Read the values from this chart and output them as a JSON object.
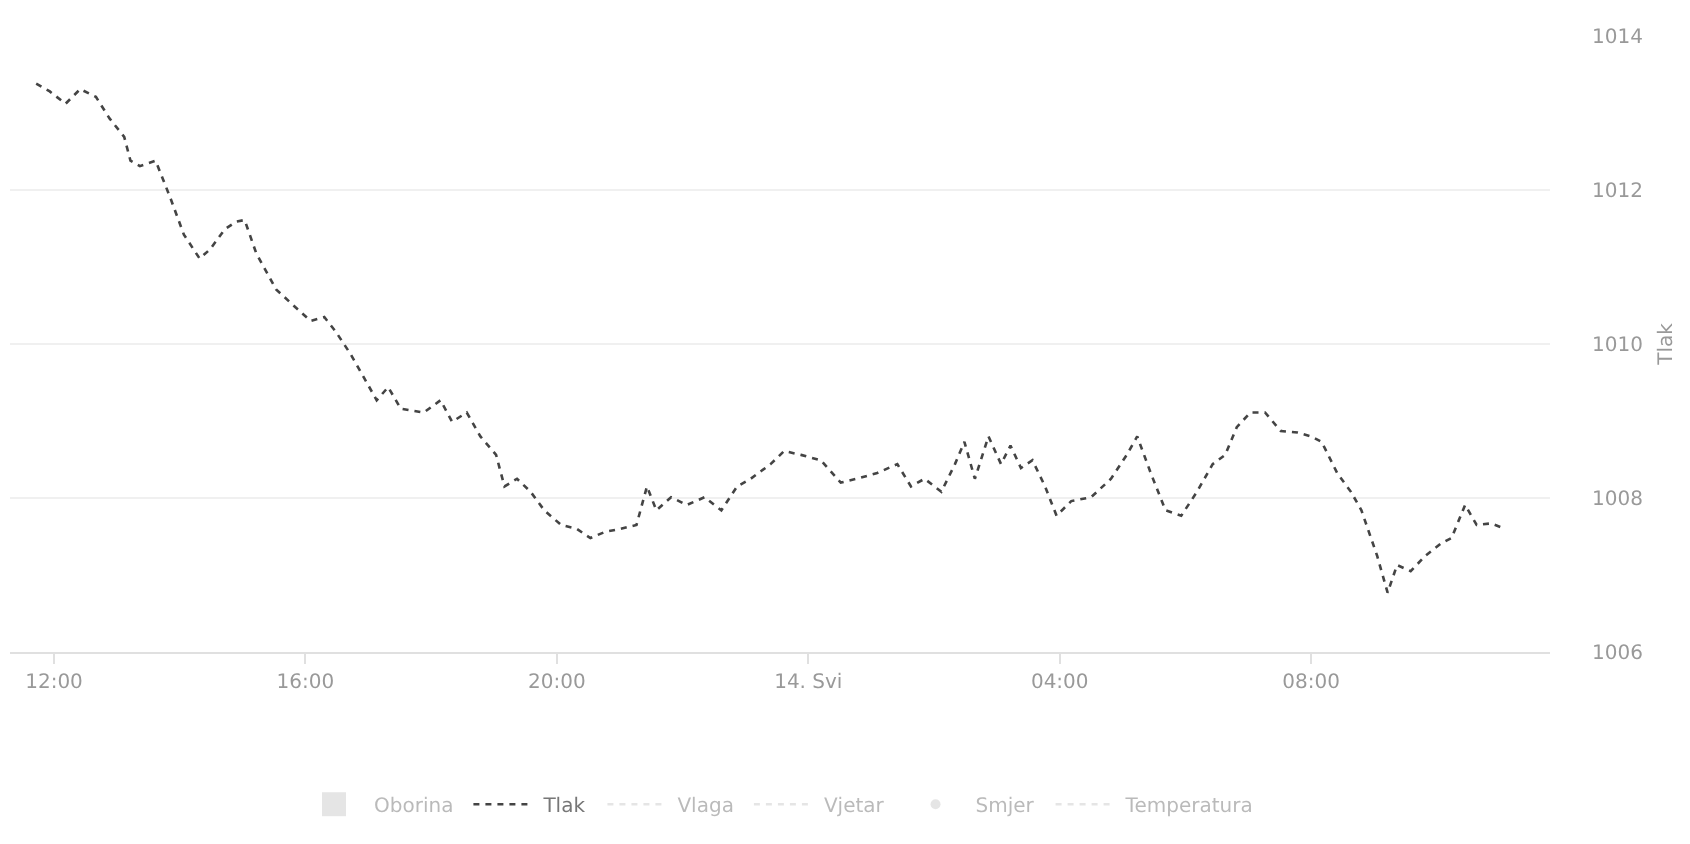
{
  "chart_data": {
    "type": "line",
    "ylabel": "Tlak",
    "xlim": [
      "--05-13T11:18",
      "--05-14T11:48"
    ],
    "xticks": [
      {
        "value": "--05-13T12:00",
        "label": "12:00"
      },
      {
        "value": "--05-13T16:00",
        "label": "16:00"
      },
      {
        "value": "--05-13T20:00",
        "label": "20:00"
      },
      {
        "value": "--05-14T00:00",
        "label": "14. Svi"
      },
      {
        "value": "--05-14T04:00",
        "label": "04:00"
      },
      {
        "value": "--05-14T08:00",
        "label": "08:00"
      }
    ],
    "ylim": [
      1006,
      1014
    ],
    "yticks": [
      1006,
      1008,
      1010,
      1012,
      1014
    ],
    "grid": "y",
    "legend": "bottom",
    "line_style": "dotted",
    "x": [
      "--05-13T11:43",
      "--05-13T11:56",
      "--05-13T12:11",
      "--05-13T12:25",
      "--05-13T12:40",
      "--05-13T12:53",
      "--05-13T13:07",
      "--05-13T13:13",
      "--05-13T13:22",
      "--05-13T13:37",
      "--05-13T13:51",
      "--05-13T14:04",
      "--05-13T14:19",
      "--05-13T14:29",
      "--05-13T14:43",
      "--05-13T14:54",
      "--05-13T15:02",
      "--05-13T15:13",
      "--05-13T15:32",
      "--05-13T15:51",
      "--05-13T16:05",
      "--05-13T16:18",
      "--05-13T16:29",
      "--05-13T16:43",
      "--05-13T16:56",
      "--05-13T17:08",
      "--05-13T17:19",
      "--05-13T17:31",
      "--05-13T17:53",
      "--05-13T18:09",
      "--05-13T18:20",
      "--05-13T18:34",
      "--05-13T18:47",
      "--05-13T19:02",
      "--05-13T19:10",
      "--05-13T19:22",
      "--05-13T19:35",
      "--05-13T19:48",
      "--05-13T20:04",
      "--05-13T20:19",
      "--05-13T20:32",
      "--05-13T20:46",
      "--05-13T21:01",
      "--05-13T21:16",
      "--05-13T21:26",
      "--05-13T21:35",
      "--05-13T21:49",
      "--05-13T22:04",
      "--05-13T22:21",
      "--05-13T22:37",
      "--05-13T22:52",
      "--05-13T23:05",
      "--05-13T23:24",
      "--05-13T23:37",
      "--05-13T23:53",
      "--05-14T00:12",
      "--05-14T00:31",
      "--05-14T00:46",
      "--05-14T01:05",
      "--05-14T01:25",
      "--05-14T01:38",
      "--05-14T01:51",
      "--05-14T02:07",
      "--05-14T02:20",
      "--05-14T02:29",
      "--05-14T02:39",
      "--05-14T02:52",
      "--05-14T03:04",
      "--05-14T03:13",
      "--05-14T03:23",
      "--05-14T03:34",
      "--05-14T03:46",
      "--05-14T03:57",
      "--05-14T04:11",
      "--05-14T04:30",
      "--05-14T04:49",
      "--05-14T05:04",
      "--05-14T05:14",
      "--05-14T05:27",
      "--05-14T05:41",
      "--05-14T05:56",
      "--05-14T06:11",
      "--05-14T06:26",
      "--05-14T06:38",
      "--05-14T06:49",
      "--05-14T07:02",
      "--05-14T07:16",
      "--05-14T07:31",
      "--05-14T07:47",
      "--05-14T08:00",
      "--05-14T08:10",
      "--05-14T08:25",
      "--05-14T08:38",
      "--05-14T08:48",
      "--05-14T09:03",
      "--05-14T09:13",
      "--05-14T09:22",
      "--05-14T09:35",
      "--05-14T09:49",
      "--05-14T10:04",
      "--05-14T10:14",
      "--05-14T10:27",
      "--05-14T10:38",
      "--05-14T10:52",
      "--05-14T11:05"
    ],
    "series": [
      {
        "name": "Oborina",
        "type": "bar",
        "color": "#cccccc",
        "values": [
          null,
          null,
          null,
          null,
          null,
          null,
          null,
          null,
          null,
          null,
          null,
          null,
          null,
          null,
          null,
          null,
          null,
          null,
          null,
          null,
          null,
          null,
          null,
          null,
          null,
          null,
          null,
          null,
          null,
          null,
          null,
          null,
          null,
          null,
          null,
          null,
          null,
          null,
          null,
          null,
          null,
          null,
          null,
          null,
          null,
          null,
          null,
          null,
          null,
          null,
          null,
          null,
          null,
          null,
          null,
          null,
          null,
          null,
          null,
          null,
          null,
          null,
          null,
          null,
          null,
          null,
          null,
          null,
          null,
          null,
          null,
          null,
          null,
          null,
          null,
          null,
          null,
          null,
          null,
          null,
          null,
          null,
          null,
          null,
          null,
          null,
          null,
          null,
          null,
          null,
          null,
          null,
          null,
          null,
          null,
          null,
          null,
          null,
          null,
          null,
          null,
          null,
          null,
          null,
          null
        ]
      },
      {
        "name": "Tlak",
        "color": "#444444",
        "values": [
          1013.38,
          1013.28,
          1013.12,
          1013.31,
          1013.21,
          1012.93,
          1012.69,
          1012.38,
          1012.31,
          1012.38,
          1011.9,
          1011.42,
          1011.11,
          1011.23,
          1011.49,
          1011.59,
          1011.61,
          1011.18,
          1010.71,
          1010.47,
          1010.3,
          1010.35,
          1010.16,
          1009.87,
          1009.56,
          1009.27,
          1009.44,
          1009.16,
          1009.11,
          1009.27,
          1008.99,
          1009.11,
          1008.8,
          1008.56,
          1008.15,
          1008.25,
          1008.08,
          1007.84,
          1007.65,
          1007.6,
          1007.48,
          1007.56,
          1007.6,
          1007.65,
          1008.15,
          1007.84,
          1008.01,
          1007.91,
          1008.01,
          1007.84,
          1008.15,
          1008.25,
          1008.44,
          1008.61,
          1008.56,
          1008.49,
          1008.2,
          1008.25,
          1008.32,
          1008.44,
          1008.15,
          1008.25,
          1008.08,
          1008.44,
          1008.73,
          1008.25,
          1008.8,
          1008.44,
          1008.68,
          1008.39,
          1008.49,
          1008.15,
          1007.77,
          1007.96,
          1008.01,
          1008.25,
          1008.56,
          1008.8,
          1008.32,
          1007.84,
          1007.77,
          1008.08,
          1008.44,
          1008.56,
          1008.92,
          1009.11,
          1009.11,
          1008.87,
          1008.85,
          1008.8,
          1008.73,
          1008.32,
          1008.08,
          1007.84,
          1007.25,
          1006.77,
          1007.13,
          1007.05,
          1007.25,
          1007.41,
          1007.48,
          1007.91,
          1007.65,
          1007.67,
          1007.6
        ]
      },
      {
        "name": "Vlaga",
        "type": "line",
        "color": "#cccccc",
        "values": [
          null,
          null,
          null,
          null,
          null,
          null,
          null,
          null,
          null,
          null,
          null,
          null,
          null,
          null,
          null,
          null,
          null,
          null,
          null,
          null,
          null,
          null,
          null,
          null,
          null,
          null,
          null,
          null,
          null,
          null,
          null,
          null,
          null,
          null,
          null,
          null,
          null,
          null,
          null,
          null,
          null,
          null,
          null,
          null,
          null,
          null,
          null,
          null,
          null,
          null,
          null,
          null,
          null,
          null,
          null,
          null,
          null,
          null,
          null,
          null,
          null,
          null,
          null,
          null,
          null,
          null,
          null,
          null,
          null,
          null,
          null,
          null,
          null,
          null,
          null,
          null,
          null,
          null,
          null,
          null,
          null,
          null,
          null,
          null,
          null,
          null,
          null,
          null,
          null,
          null,
          null,
          null,
          null,
          null,
          null,
          null,
          null,
          null,
          null,
          null,
          null,
          null,
          null,
          null,
          null
        ]
      },
      {
        "name": "Vjetar",
        "type": "line",
        "color": "#cccccc",
        "values": [
          null,
          null,
          null,
          null,
          null,
          null,
          null,
          null,
          null,
          null,
          null,
          null,
          null,
          null,
          null,
          null,
          null,
          null,
          null,
          null,
          null,
          null,
          null,
          null,
          null,
          null,
          null,
          null,
          null,
          null,
          null,
          null,
          null,
          null,
          null,
          null,
          null,
          null,
          null,
          null,
          null,
          null,
          null,
          null,
          null,
          null,
          null,
          null,
          null,
          null,
          null,
          null,
          null,
          null,
          null,
          null,
          null,
          null,
          null,
          null,
          null,
          null,
          null,
          null,
          null,
          null,
          null,
          null,
          null,
          null,
          null,
          null,
          null,
          null,
          null,
          null,
          null,
          null,
          null,
          null,
          null,
          null,
          null,
          null,
          null,
          null,
          null,
          null,
          null,
          null,
          null,
          null,
          null,
          null,
          null,
          null,
          null,
          null,
          null,
          null,
          null,
          null,
          null,
          null,
          null
        ]
      },
      {
        "name": "Smjer",
        "type": "scatter",
        "color": "#cccccc",
        "values": [
          null,
          null,
          null,
          null,
          null,
          null,
          null,
          null,
          null,
          null,
          null,
          null,
          null,
          null,
          null,
          null,
          null,
          null,
          null,
          null,
          null,
          null,
          null,
          null,
          null,
          null,
          null,
          null,
          null,
          null,
          null,
          null,
          null,
          null,
          null,
          null,
          null,
          null,
          null,
          null,
          null,
          null,
          null,
          null,
          null,
          null,
          null,
          null,
          null,
          null,
          null,
          null,
          null,
          null,
          null,
          null,
          null,
          null,
          null,
          null,
          null,
          null,
          null,
          null,
          null,
          null,
          null,
          null,
          null,
          null,
          null,
          null,
          null,
          null,
          null,
          null,
          null,
          null,
          null,
          null,
          null,
          null,
          null,
          null,
          null,
          null,
          null,
          null,
          null,
          null,
          null,
          null,
          null,
          null,
          null,
          null,
          null,
          null,
          null,
          null,
          null,
          null,
          null,
          null,
          null
        ]
      },
      {
        "name": "Temperatura",
        "type": "line",
        "color": "#cccccc",
        "values": [
          null,
          null,
          null,
          null,
          null,
          null,
          null,
          null,
          null,
          null,
          null,
          null,
          null,
          null,
          null,
          null,
          null,
          null,
          null,
          null,
          null,
          null,
          null,
          null,
          null,
          null,
          null,
          null,
          null,
          null,
          null,
          null,
          null,
          null,
          null,
          null,
          null,
          null,
          null,
          null,
          null,
          null,
          null,
          null,
          null,
          null,
          null,
          null,
          null,
          null,
          null,
          null,
          null,
          null,
          null,
          null,
          null,
          null,
          null,
          null,
          null,
          null,
          null,
          null,
          null,
          null,
          null,
          null,
          null,
          null,
          null,
          null,
          null,
          null,
          null,
          null,
          null,
          null,
          null,
          null,
          null,
          null,
          null,
          null,
          null,
          null,
          null,
          null,
          null,
          null,
          null,
          null,
          null,
          null,
          null,
          null,
          null,
          null,
          null,
          null,
          null,
          null,
          null,
          null,
          null
        ]
      }
    ]
  }
}
